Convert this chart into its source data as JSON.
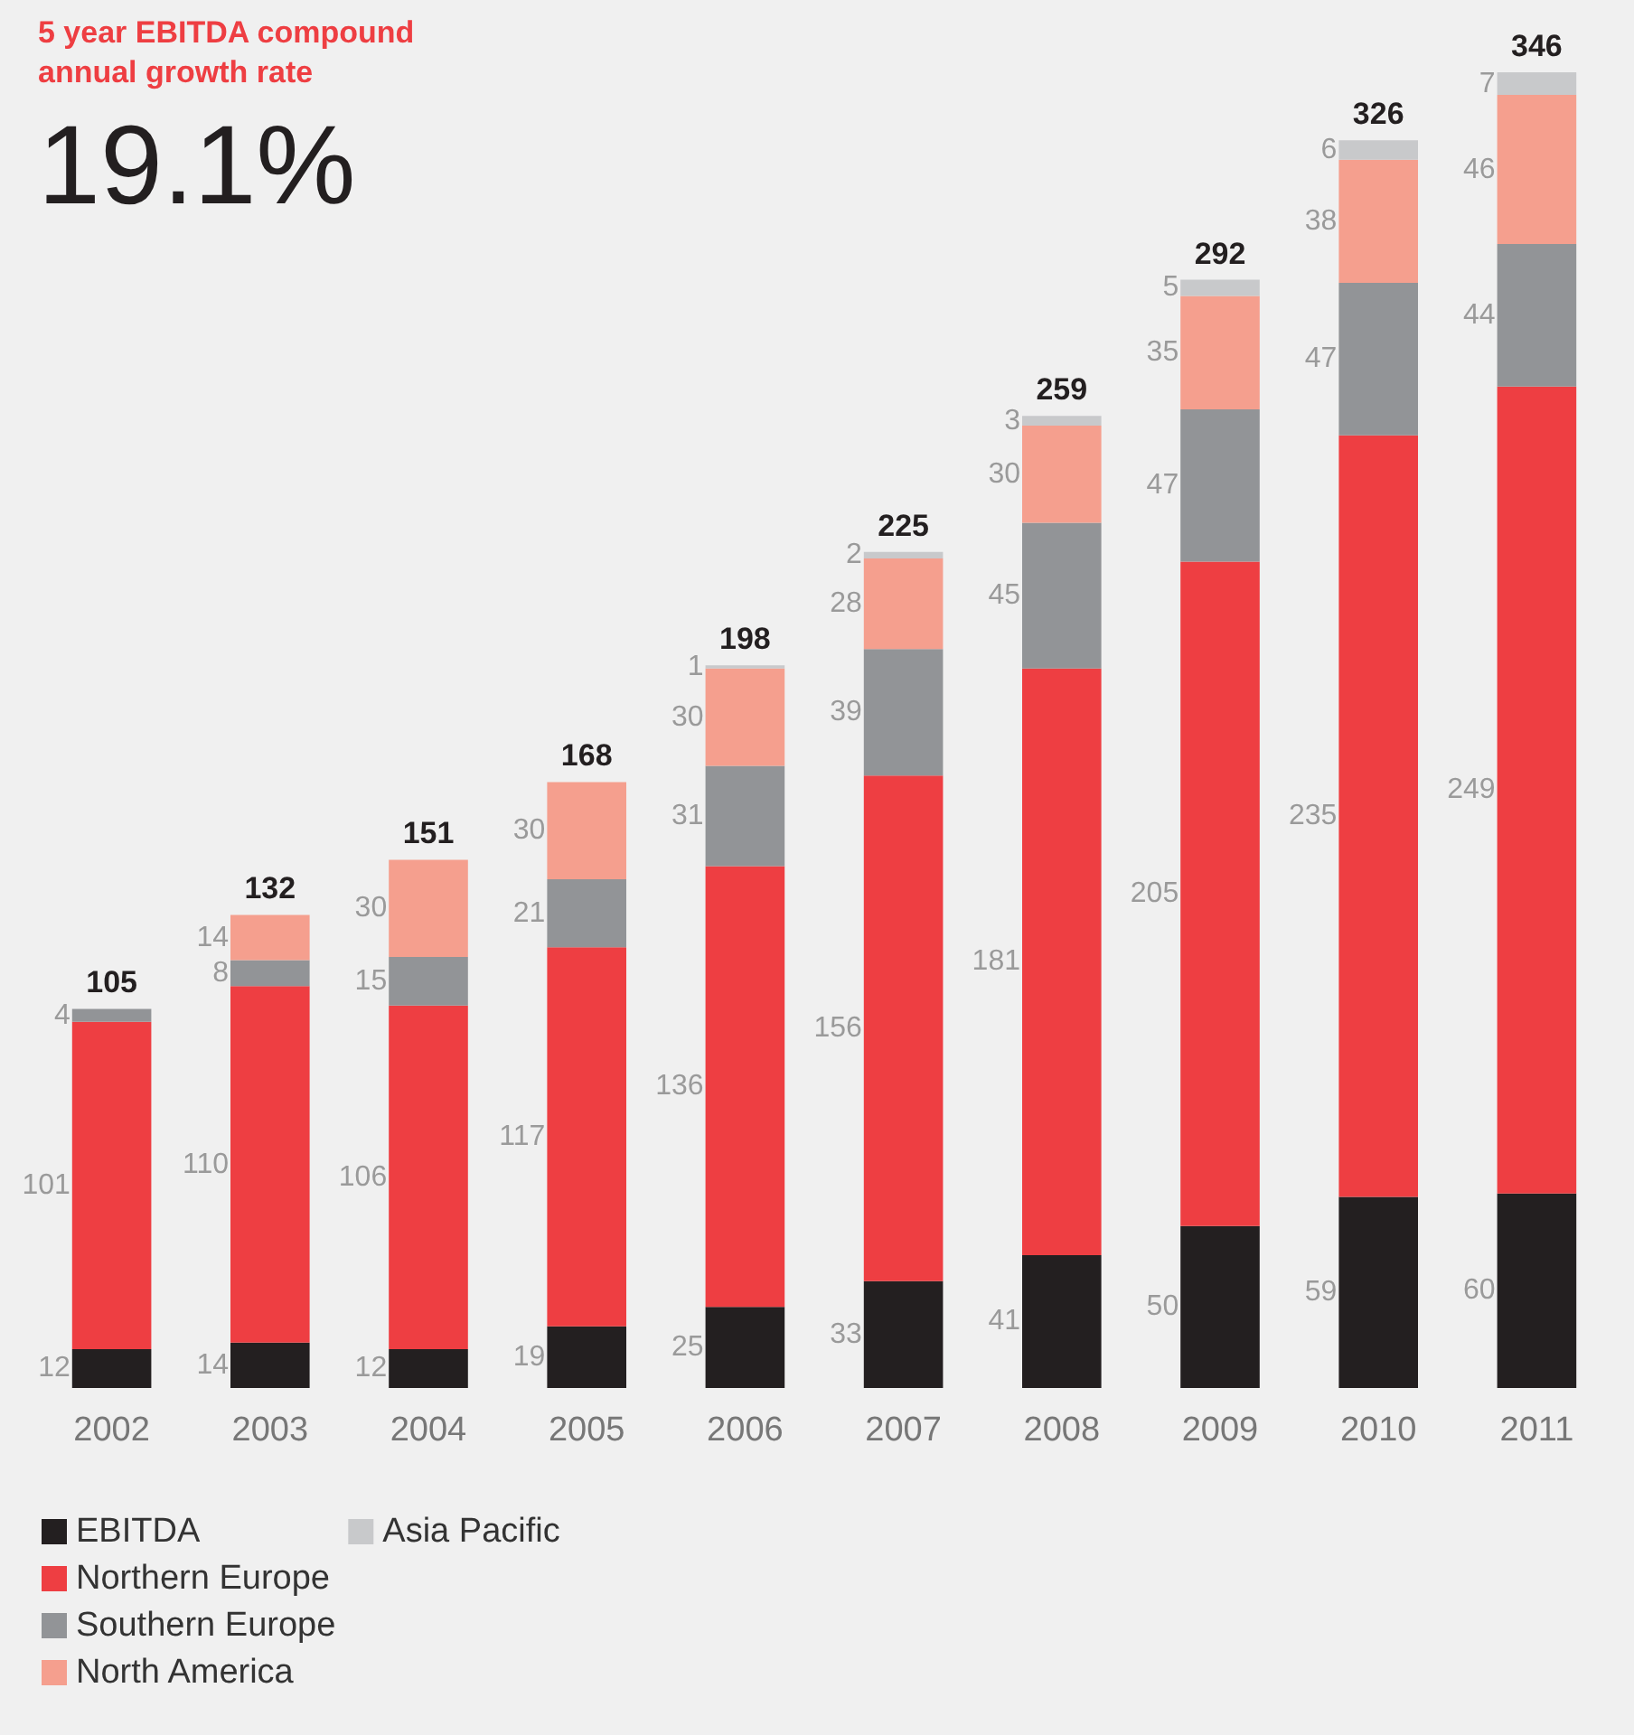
{
  "chart_data": {
    "type": "bar",
    "title": "5 year EBITDA compound\nannual growth rate",
    "subtitle": "19.1%",
    "categories": [
      "2002",
      "2003",
      "2004",
      "2005",
      "2006",
      "2007",
      "2008",
      "2009",
      "2010",
      "2011"
    ],
    "stacked": true,
    "data_labels": true,
    "legend": "bottom left",
    "series": [
      {
        "name": "EBITDA",
        "color": "#231f20",
        "values": [
          12,
          14,
          12,
          19,
          25,
          33,
          41,
          50,
          59,
          60
        ]
      },
      {
        "name": "Northern Europe",
        "color": "#ee3e42",
        "values": [
          101,
          110,
          106,
          117,
          136,
          156,
          181,
          205,
          235,
          249
        ]
      },
      {
        "name": "Southern Europe",
        "color": "#929497",
        "values": [
          4,
          8,
          15,
          21,
          31,
          39,
          45,
          47,
          47,
          44
        ]
      },
      {
        "name": "North America",
        "color": "#f59f8e",
        "values": [
          null,
          14,
          30,
          30,
          30,
          28,
          30,
          35,
          38,
          46
        ]
      },
      {
        "name": "Asia Pacific",
        "color": "#c8c9cb",
        "values": [
          null,
          null,
          null,
          null,
          1,
          2,
          3,
          5,
          6,
          7
        ]
      }
    ],
    "annotations": [
      {
        "text": "105",
        "x": "2002",
        "y": 117
      },
      {
        "text": "132",
        "x": "2003",
        "y": 146
      },
      {
        "text": "151",
        "x": "2004",
        "y": 163
      },
      {
        "text": "168",
        "x": "2005",
        "y": 187
      },
      {
        "text": "198",
        "x": "2006",
        "y": 223
      },
      {
        "text": "225",
        "x": "2007",
        "y": 258
      },
      {
        "text": "259",
        "x": "2008",
        "y": 300
      },
      {
        "text": "292",
        "x": "2009",
        "y": 342
      },
      {
        "text": "326",
        "x": "2010",
        "y": 385
      },
      {
        "text": "346",
        "x": "2011",
        "y": 406
      }
    ]
  }
}
